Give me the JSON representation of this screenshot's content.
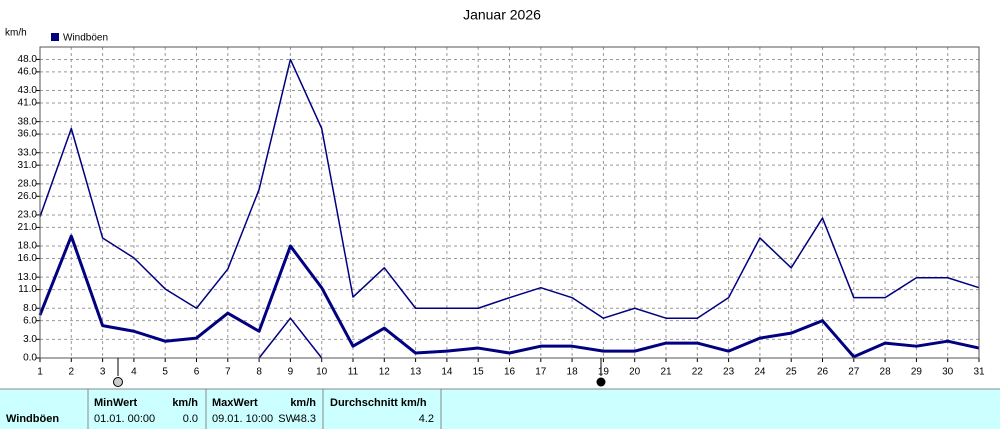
{
  "chart_data": {
    "type": "line",
    "title": "Januar 2026",
    "y_unit": "km/h",
    "x": [
      1,
      2,
      3,
      4,
      5,
      6,
      7,
      8,
      9,
      10,
      11,
      12,
      13,
      14,
      15,
      16,
      17,
      18,
      19,
      20,
      21,
      22,
      23,
      24,
      25,
      26,
      27,
      28,
      29,
      30,
      31
    ],
    "xlim": [
      1,
      31
    ],
    "series": [
      {
        "name": "Windböen",
        "color": "#000080",
        "width": 3,
        "values": [
          6.9,
          19.6,
          5.2,
          4.3,
          2.7,
          3.2,
          7.2,
          4.3,
          18.0,
          11.3,
          1.9,
          4.8,
          0.8,
          1.1,
          1.6,
          0.8,
          1.9,
          1.9,
          1.1,
          1.1,
          2.4,
          2.4,
          1.1,
          3.2,
          4.0,
          6.0,
          0.2,
          2.4,
          1.9,
          2.7,
          1.6
        ]
      },
      {
        "color": "#000080",
        "width": 1.5,
        "values": [
          22.7,
          36.9,
          19.3,
          16.1,
          11.1,
          8.0,
          14.3,
          27.1,
          48.0,
          36.9,
          9.8,
          14.5,
          8.0,
          8.0,
          8.0,
          9.7,
          11.3,
          9.7,
          6.4,
          8.0,
          6.4,
          6.4,
          9.7,
          19.3,
          14.5,
          22.5,
          9.7,
          9.7,
          12.9,
          12.9,
          11.3
        ]
      },
      {
        "color": "#000080",
        "width": 1.5,
        "values": [
          null,
          null,
          null,
          null,
          null,
          null,
          null,
          0,
          6.4,
          0,
          null,
          null,
          null,
          null,
          null,
          null,
          null,
          null,
          null,
          null,
          null,
          null,
          null,
          null,
          null,
          null,
          null,
          null,
          null,
          null,
          null
        ]
      }
    ],
    "ylim": [
      0,
      50
    ],
    "yticks": [
      {
        "value": 0,
        "label": "0.0"
      },
      {
        "value": 3,
        "label": "3.0"
      },
      {
        "value": 6,
        "label": "6.0"
      },
      {
        "value": 8,
        "label": "8.0"
      },
      {
        "value": 11,
        "label": "11.0"
      },
      {
        "value": 13,
        "label": "13.0"
      },
      {
        "value": 16,
        "label": "16.0"
      },
      {
        "value": 18,
        "label": "18.0"
      },
      {
        "value": 21,
        "label": "21.0"
      },
      {
        "value": 23,
        "label": "23.0"
      },
      {
        "value": 26,
        "label": "26.0"
      },
      {
        "value": 28,
        "label": "28.0"
      },
      {
        "value": 31,
        "label": "31.0"
      },
      {
        "value": 33,
        "label": "33.0"
      },
      {
        "value": 36,
        "label": "36.0"
      },
      {
        "value": 38,
        "label": "38.0"
      },
      {
        "value": 41,
        "label": "41.0"
      },
      {
        "value": 43,
        "label": "43.0"
      },
      {
        "value": 46,
        "label": "46.0"
      },
      {
        "value": 48,
        "label": "48.0"
      }
    ],
    "grid": true
  },
  "table": {
    "row_label": "Windböen",
    "min": {
      "header": "MinWert",
      "unit": "km/h",
      "date": "01.01. 00:00",
      "value": "0.0"
    },
    "max": {
      "header": "MaxWert",
      "unit": "km/h",
      "date": "09.01. 10:00",
      "dir": "SW",
      "value": "48.3"
    },
    "avg": {
      "header": "Durchschnitt km/h",
      "value": "4.2"
    }
  }
}
